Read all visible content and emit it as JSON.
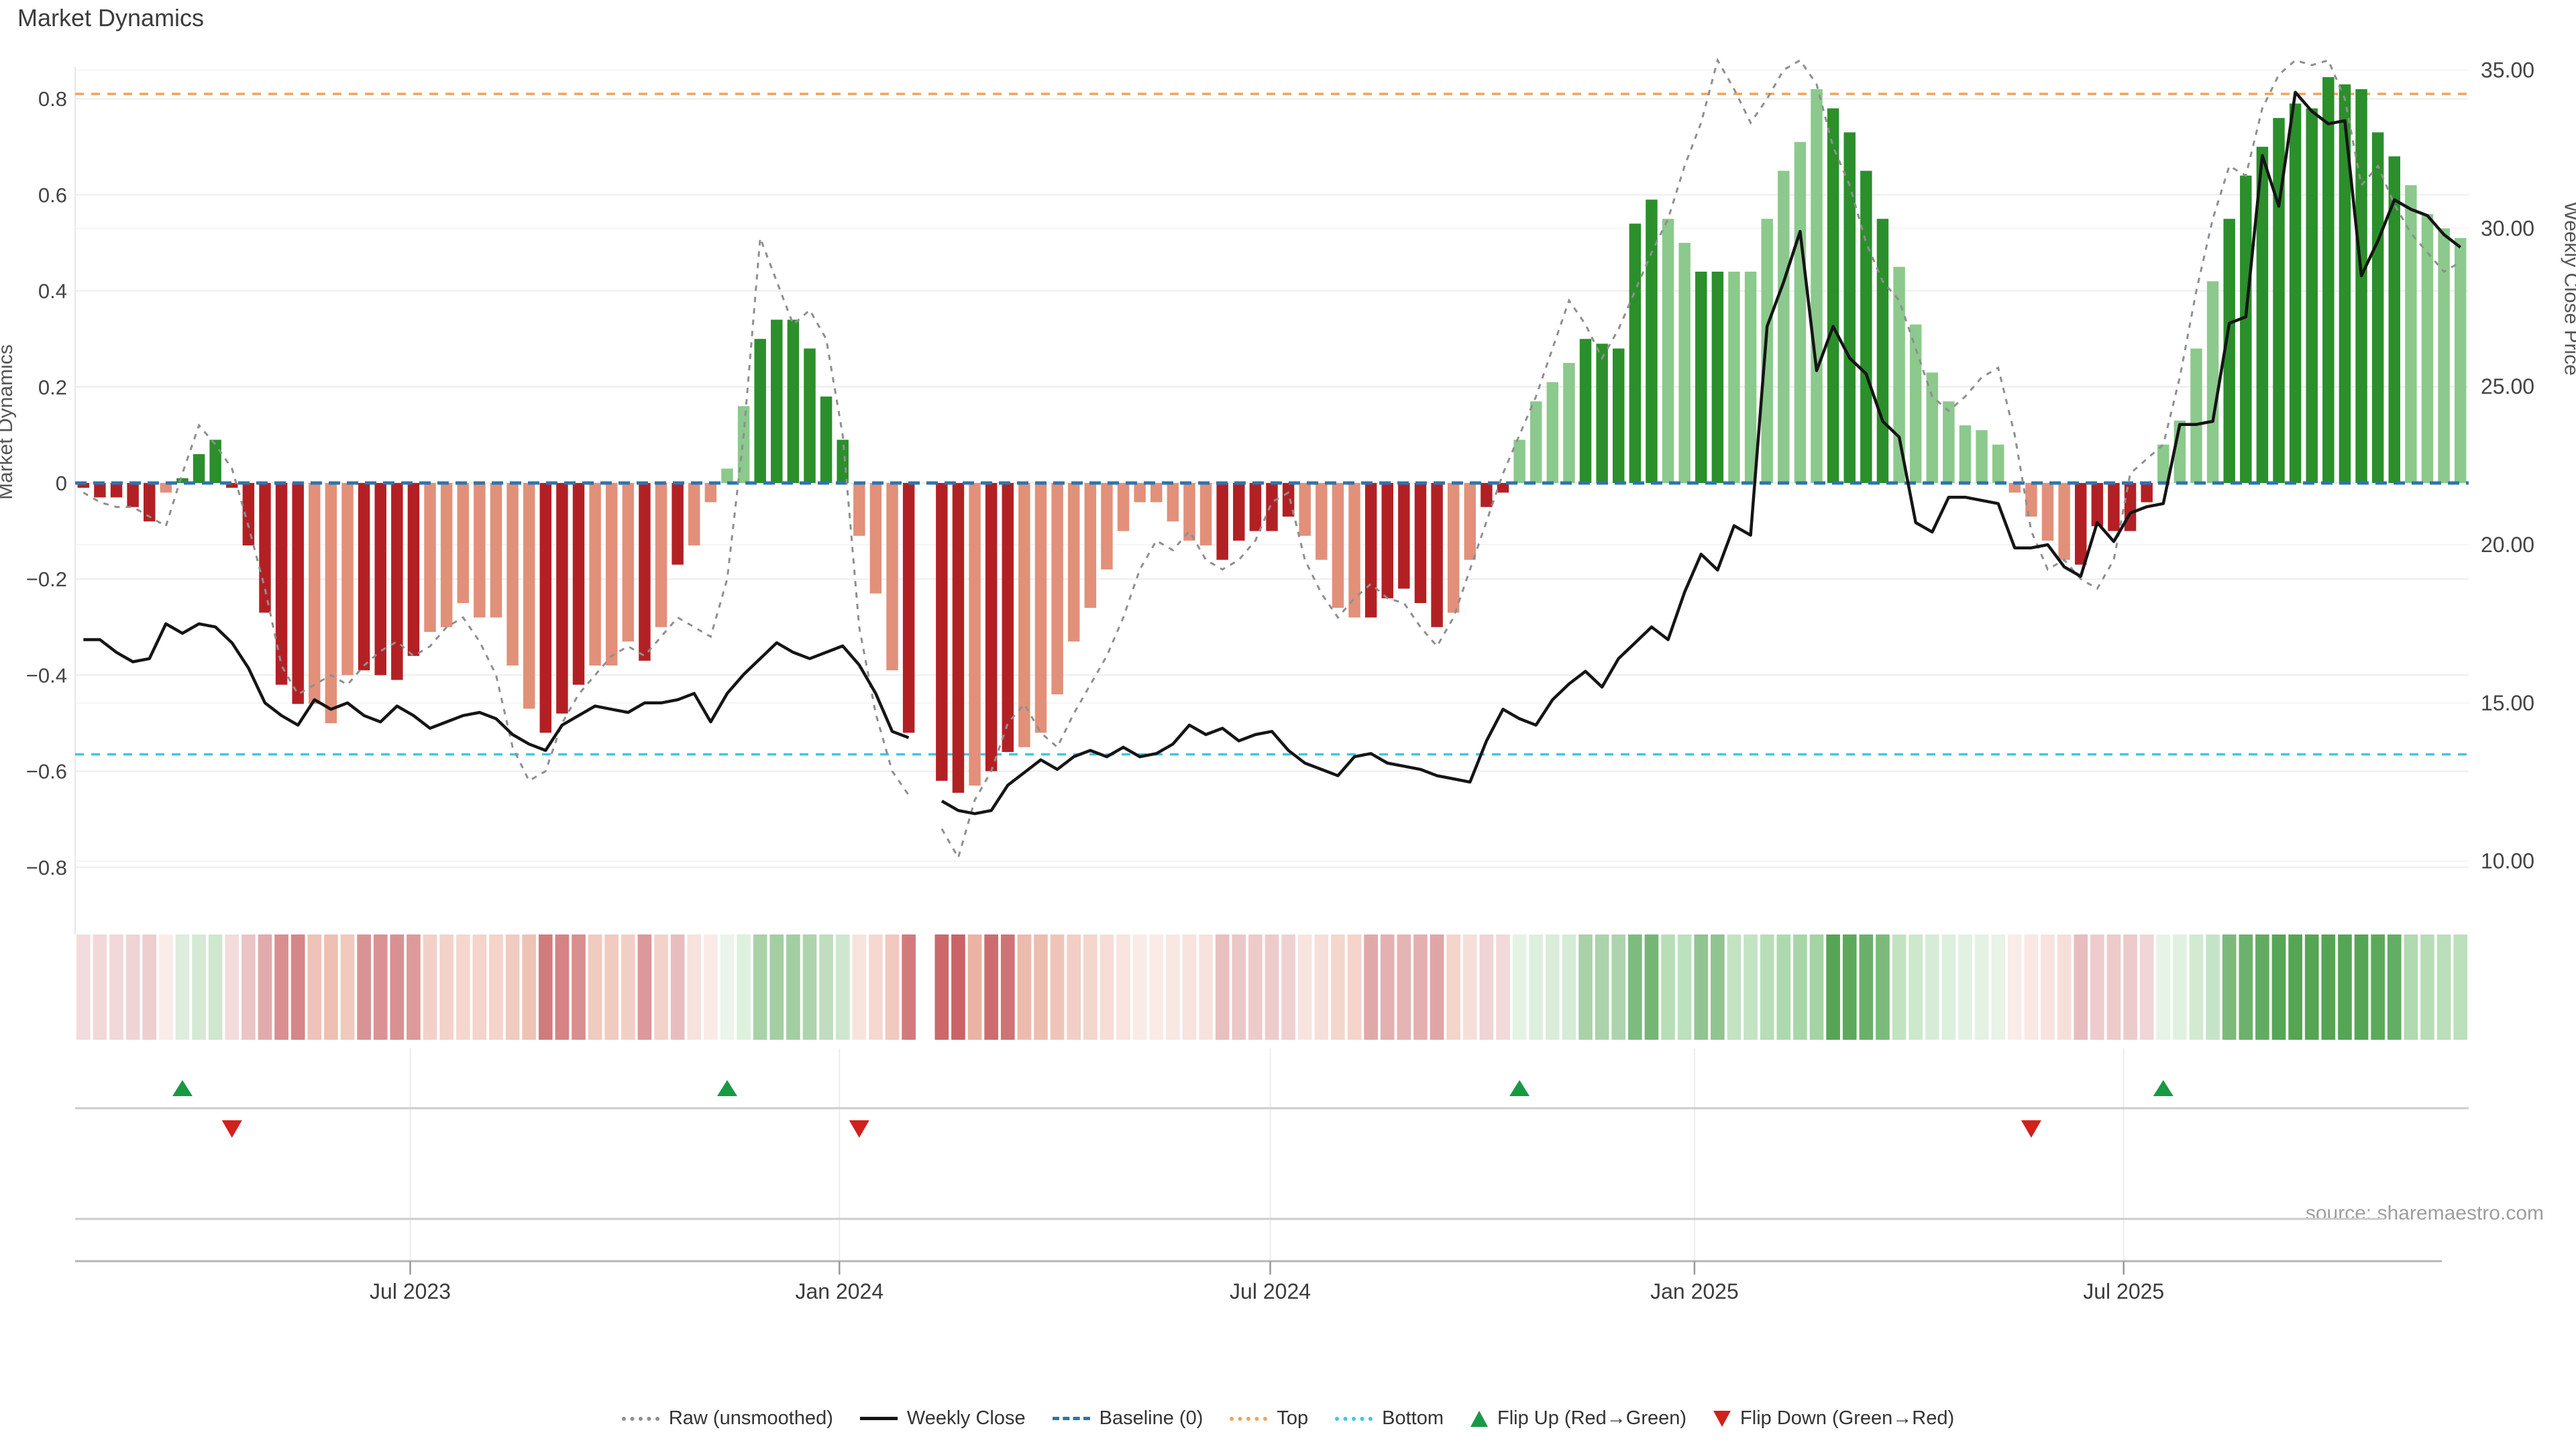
{
  "title": "Market Dynamics",
  "source": "source: sharemaestro.com",
  "axes": {
    "left_title": "Market Dynamics",
    "right_title": "Weekly Close Price",
    "left_ticks": [
      {
        "label": "0.8",
        "value": 0.8
      },
      {
        "label": "0.6",
        "value": 0.6
      },
      {
        "label": "0.4",
        "value": 0.4
      },
      {
        "label": "0.2",
        "value": 0.2
      },
      {
        "label": "0",
        "value": 0.0
      },
      {
        "label": "−0.2",
        "value": -0.2
      },
      {
        "label": "−0.4",
        "value": -0.4
      },
      {
        "label": "−0.6",
        "value": -0.6
      },
      {
        "label": "−0.8",
        "value": -0.8
      }
    ],
    "right_ticks": [
      {
        "label": "35.00",
        "value": 35
      },
      {
        "label": "30.00",
        "value": 30
      },
      {
        "label": "25.00",
        "value": 25
      },
      {
        "label": "20.00",
        "value": 20
      },
      {
        "label": "15.00",
        "value": 15
      },
      {
        "label": "10.00",
        "value": 10
      }
    ],
    "x_ticks": [
      {
        "label": "Jul 2023",
        "week": 19.8
      },
      {
        "label": "Jan 2024",
        "week": 45.8
      },
      {
        "label": "Jul 2024",
        "week": 71.9
      },
      {
        "label": "Jan 2025",
        "week": 97.6
      },
      {
        "label": "Jul 2025",
        "week": 123.6
      }
    ]
  },
  "legend": {
    "items": [
      {
        "label": "Raw (unsmoothed)",
        "swatch": "dotted-line",
        "color": "#8f8f8f"
      },
      {
        "label": "Weekly Close",
        "swatch": "solid-line",
        "color": "#151515"
      },
      {
        "label": "Baseline (0)",
        "swatch": "dashed-line",
        "color": "#2d74ad"
      },
      {
        "label": "Top",
        "swatch": "dotted-line",
        "color": "#f0a35c"
      },
      {
        "label": "Bottom",
        "swatch": "dotted-line",
        "color": "#3fc6e8"
      },
      {
        "label": "Flip Up (Red→Green)",
        "swatch": "triangle-up",
        "color": "#189944"
      },
      {
        "label": "Flip Down (Green→Red)",
        "swatch": "triangle-down",
        "color": "#d2201c"
      }
    ]
  },
  "colors": {
    "bar_dark_red": "#b32024",
    "bar_light_red": "#e2907a",
    "bar_dark_green": "#2b8f2b",
    "bar_light_green": "#8cc98c",
    "baseline": "#2d74ad",
    "top_line": "#f0a35c",
    "bottom_line": "#3fc6e8",
    "raw_line": "#8f8f8f",
    "close_line": "#151515",
    "flip_up": "#189944",
    "flip_down": "#d2201c",
    "grid": "#ededf2",
    "grid_faint": "#f5f5f8",
    "band_line": "#cccccc",
    "axis_line": "#b5b5b5",
    "tick_text": "#444444",
    "x_label_text": "#3c3c3c"
  },
  "chart_data": {
    "type": "bar",
    "x_unit": "weekly, Feb 2023 – Nov 2025",
    "n_weeks": 145,
    "baseline": 0,
    "top_level": 0.81,
    "bottom_level": -0.565,
    "ylim_dynamics": [
      -0.94,
      0.866
    ],
    "ylim_price": [
      9.05,
      35.1
    ],
    "missing_weeks": [
      51
    ],
    "flip_up_weeks": [
      6,
      39,
      87,
      126
    ],
    "flip_down_weeks": [
      9,
      47,
      118
    ],
    "bar_tones": "dddddlddddddddlllddddllllllldddllldldllllddddddlllddddxddlllllllllllldddddllllddddd lldd llllddddd lldd llllllddddlllllllllllddddd llll dddddddddddllllllll",
    "series": [
      {
        "name": "Market Dynamics (bars)",
        "axis": "dynamics",
        "values": [
          -0.01,
          -0.03,
          -0.03,
          -0.05,
          -0.08,
          -0.02,
          0.01,
          0.06,
          0.09,
          -0.01,
          -0.13,
          -0.27,
          -0.42,
          -0.46,
          -0.46,
          -0.5,
          -0.4,
          -0.39,
          -0.4,
          -0.41,
          -0.36,
          -0.31,
          -0.3,
          -0.25,
          -0.28,
          -0.28,
          -0.38,
          -0.47,
          -0.52,
          -0.48,
          -0.42,
          -0.38,
          -0.38,
          -0.33,
          -0.37,
          -0.3,
          -0.17,
          -0.13,
          -0.04,
          0.03,
          0.16,
          0.3,
          0.34,
          0.34,
          0.28,
          0.18,
          0.09,
          -0.11,
          -0.23,
          -0.39,
          -0.52,
          null,
          -0.62,
          -0.645,
          -0.63,
          -0.6,
          -0.56,
          -0.55,
          -0.52,
          -0.44,
          -0.33,
          -0.26,
          -0.18,
          -0.1,
          -0.04,
          -0.04,
          -0.08,
          -0.12,
          -0.13,
          -0.16,
          -0.12,
          -0.1,
          -0.1,
          -0.07,
          -0.11,
          -0.16,
          -0.26,
          -0.28,
          -0.28,
          -0.24,
          -0.22,
          -0.25,
          -0.3,
          -0.27,
          -0.16,
          -0.05,
          -0.02,
          0.09,
          0.17,
          0.21,
          0.25,
          0.3,
          0.29,
          0.28,
          0.54,
          0.59,
          0.55,
          0.5,
          0.44,
          0.44,
          0.44,
          0.44,
          0.55,
          0.65,
          0.71,
          0.82,
          0.78,
          0.73,
          0.65,
          0.55,
          0.45,
          0.33,
          0.23,
          0.17,
          0.12,
          0.11,
          0.08,
          -0.02,
          -0.07,
          -0.12,
          -0.16,
          -0.17,
          -0.09,
          -0.1,
          -0.1,
          -0.04,
          0.08,
          0.13,
          0.28,
          0.42,
          0.55,
          0.64,
          0.7,
          0.76,
          0.79,
          0.78,
          0.845,
          0.83,
          0.82,
          0.73,
          0.68,
          0.62,
          0.56,
          0.53,
          0.51
        ]
      },
      {
        "name": "Raw (unsmoothed)",
        "axis": "dynamics",
        "values": [
          -0.02,
          -0.04,
          -0.05,
          -0.05,
          -0.07,
          -0.09,
          0.02,
          0.12,
          0.08,
          0.03,
          -0.09,
          -0.22,
          -0.38,
          -0.44,
          -0.42,
          -0.4,
          -0.42,
          -0.38,
          -0.35,
          -0.33,
          -0.36,
          -0.34,
          -0.3,
          -0.28,
          -0.33,
          -0.4,
          -0.55,
          -0.62,
          -0.6,
          -0.5,
          -0.44,
          -0.4,
          -0.36,
          -0.34,
          -0.36,
          -0.32,
          -0.28,
          -0.3,
          -0.32,
          -0.2,
          0.1,
          0.51,
          0.42,
          0.33,
          0.36,
          0.3,
          0.1,
          -0.3,
          -0.48,
          -0.6,
          -0.65,
          null,
          -0.72,
          -0.78,
          -0.66,
          -0.6,
          -0.5,
          -0.46,
          -0.52,
          -0.55,
          -0.48,
          -0.42,
          -0.36,
          -0.28,
          -0.18,
          -0.12,
          -0.14,
          -0.1,
          -0.16,
          -0.18,
          -0.16,
          -0.12,
          -0.04,
          -0.02,
          -0.16,
          -0.23,
          -0.28,
          -0.24,
          -0.21,
          -0.24,
          -0.25,
          -0.3,
          -0.34,
          -0.28,
          -0.18,
          -0.08,
          0.02,
          0.1,
          0.18,
          0.28,
          0.38,
          0.33,
          0.26,
          0.32,
          0.4,
          0.48,
          0.55,
          0.66,
          0.75,
          0.88,
          0.82,
          0.75,
          0.8,
          0.86,
          0.88,
          0.83,
          0.7,
          0.62,
          0.5,
          0.42,
          0.38,
          0.28,
          0.18,
          0.15,
          0.18,
          0.22,
          0.24,
          0.1,
          -0.1,
          -0.18,
          -0.16,
          -0.2,
          -0.22,
          -0.16,
          0.02,
          0.05,
          0.08,
          0.22,
          0.4,
          0.55,
          0.66,
          0.64,
          0.78,
          0.85,
          0.88,
          0.87,
          0.88,
          0.8,
          0.62,
          0.66,
          0.58,
          0.52,
          0.48,
          0.44,
          0.46
        ]
      },
      {
        "name": "Weekly Close",
        "axis": "price",
        "values": [
          17.0,
          17.0,
          16.6,
          16.3,
          16.4,
          17.5,
          17.2,
          17.5,
          17.4,
          16.9,
          16.1,
          15.0,
          14.6,
          14.3,
          15.1,
          14.8,
          15.0,
          14.6,
          14.4,
          14.9,
          14.6,
          14.2,
          14.4,
          14.6,
          14.7,
          14.5,
          14.0,
          13.7,
          13.5,
          14.3,
          14.6,
          14.9,
          14.8,
          14.7,
          15.0,
          15.0,
          15.1,
          15.3,
          14.4,
          15.3,
          15.9,
          16.4,
          16.9,
          16.6,
          16.4,
          16.6,
          16.8,
          16.2,
          15.3,
          14.1,
          13.9,
          null,
          11.9,
          11.6,
          11.5,
          11.6,
          12.4,
          12.8,
          13.2,
          12.9,
          13.3,
          13.5,
          13.3,
          13.6,
          13.3,
          13.4,
          13.7,
          14.3,
          14.0,
          14.2,
          13.8,
          14.0,
          14.1,
          13.5,
          13.1,
          12.9,
          12.7,
          13.3,
          13.4,
          13.1,
          13.0,
          12.9,
          12.7,
          12.6,
          12.5,
          13.8,
          14.8,
          14.5,
          14.3,
          15.1,
          15.6,
          16.0,
          15.5,
          16.4,
          16.9,
          17.4,
          17.0,
          18.5,
          19.7,
          19.2,
          20.6,
          20.3,
          26.9,
          28.3,
          29.9,
          25.5,
          26.9,
          25.9,
          25.4,
          23.9,
          23.4,
          20.7,
          20.4,
          21.5,
          21.5,
          21.4,
          21.3,
          19.9,
          19.9,
          20.0,
          19.3,
          19.0,
          20.7,
          20.1,
          21.0,
          21.2,
          21.3,
          23.8,
          23.8,
          23.9,
          27.0,
          27.2,
          32.3,
          30.7,
          34.3,
          33.7,
          33.3,
          33.4,
          28.5,
          29.6,
          30.9,
          30.6,
          30.4,
          29.8,
          29.4
        ]
      }
    ]
  }
}
